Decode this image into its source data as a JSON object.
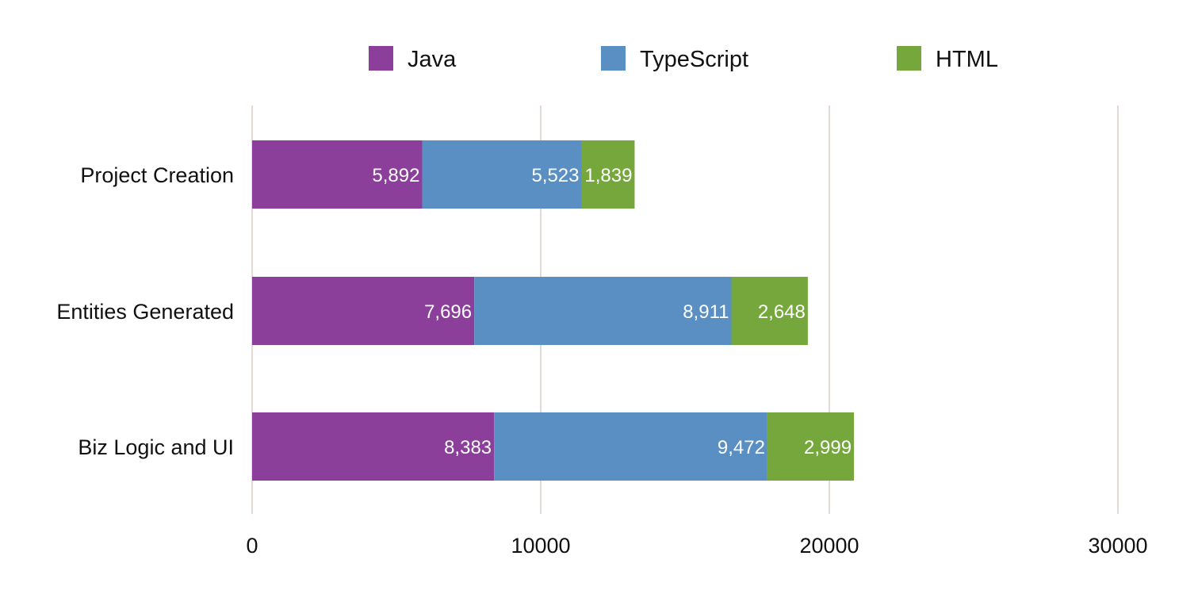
{
  "chart_data": {
    "type": "bar",
    "orientation": "horizontal",
    "stacked": true,
    "title": "",
    "xlabel": "",
    "ylabel": "",
    "categories": [
      "Project Creation",
      "Entities Generated",
      "Biz Logic and UI"
    ],
    "series": [
      {
        "name": "Java",
        "color": "#8b3f9b",
        "values": [
          5892,
          7696,
          8383
        ],
        "labels": [
          "5,892",
          "7,696",
          "8,383"
        ]
      },
      {
        "name": "TypeScript",
        "color": "#5a8fc3",
        "values": [
          5523,
          8911,
          9472
        ],
        "labels": [
          "5,523",
          "8,911",
          "9,472"
        ]
      },
      {
        "name": "HTML",
        "color": "#76a73d",
        "values": [
          1839,
          2648,
          2999
        ],
        "labels": [
          "1,839",
          "2,648",
          "2,999"
        ]
      }
    ],
    "xlim": [
      0,
      30000
    ],
    "xticks": [
      "0",
      "10000",
      "20000",
      "30000"
    ],
    "grid": "vertical",
    "legend": "top-center"
  }
}
